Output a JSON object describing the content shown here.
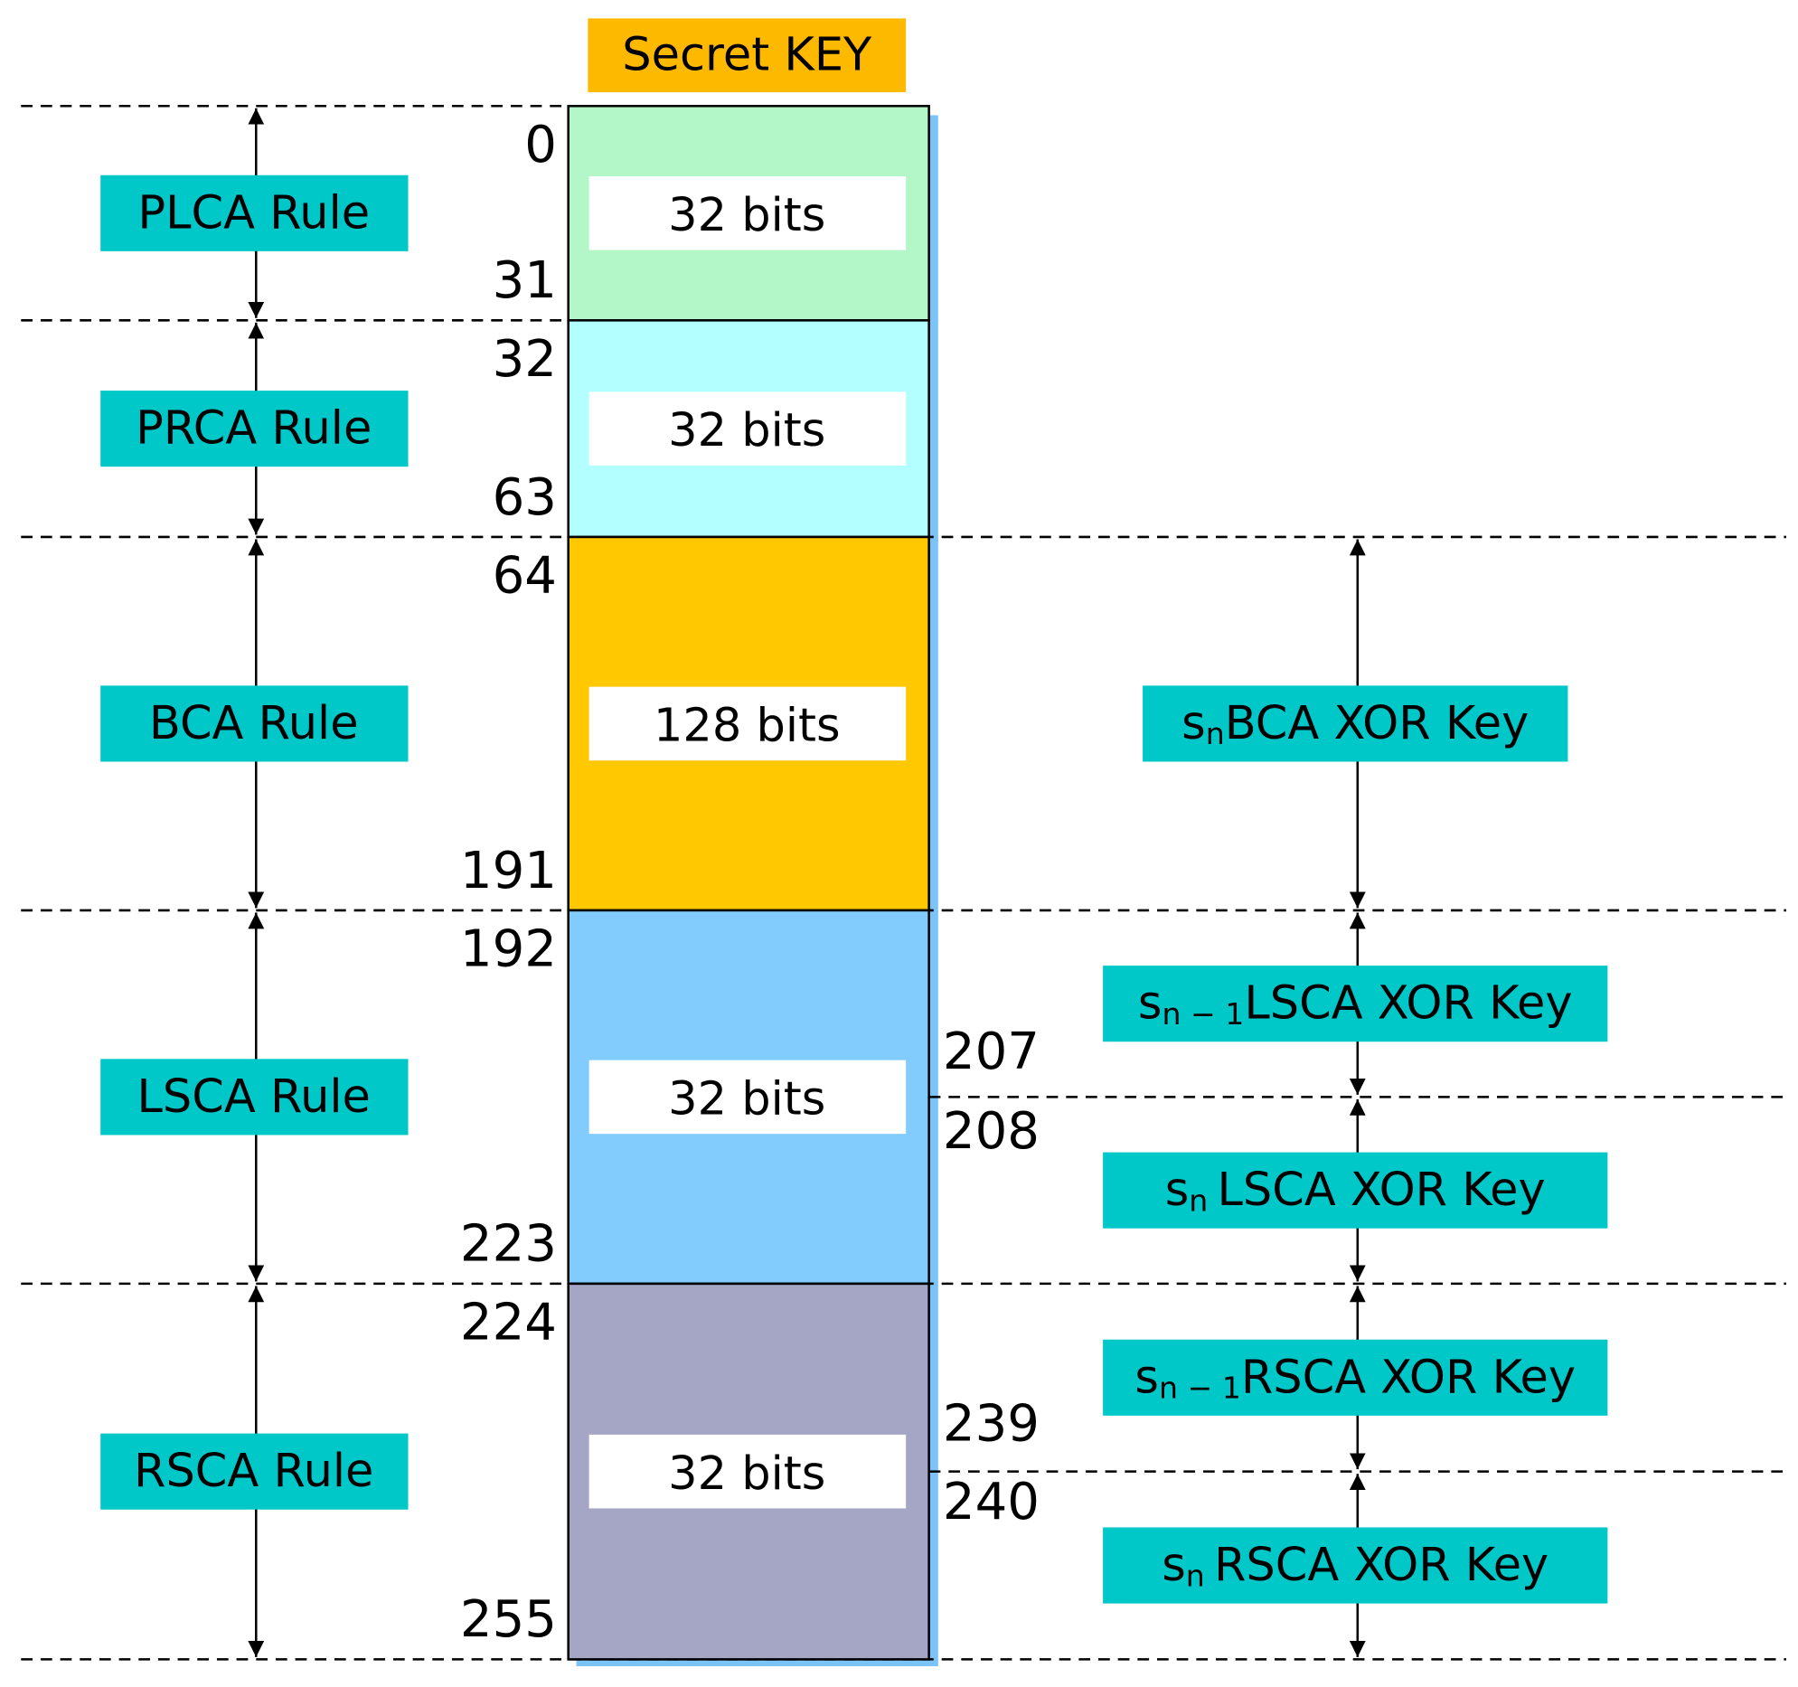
{
  "title": "Secret KEY",
  "segments": [
    {
      "start": 0,
      "end": 31,
      "bits": "32 bits"
    },
    {
      "start": 32,
      "end": 63,
      "bits": "32 bits"
    },
    {
      "start": 64,
      "end": 191,
      "bits": "128 bits"
    },
    {
      "start": 192,
      "end": 223,
      "bits": "32 bits"
    },
    {
      "start": 224,
      "end": 255,
      "bits": "32 bits"
    }
  ],
  "rules": [
    "PLCA Rule",
    "PRCA Rule",
    "BCA Rule",
    "LSCA Rule",
    "RSCA Rule"
  ],
  "xor_keys": [
    {
      "s": "s",
      "sub": "n",
      "label": "BCA XOR Key"
    },
    {
      "s": "s",
      "sub": "n − 1",
      "label": "LSCA XOR Key"
    },
    {
      "s": "s",
      "sub": "n",
      "label": "LSCA XOR Key"
    },
    {
      "s": "s",
      "sub": "n − 1",
      "label": "RSCA XOR Key"
    },
    {
      "s": "s",
      "sub": "n",
      "label": "RSCA XOR Key"
    }
  ],
  "split_labels": [
    207,
    208,
    239,
    240
  ]
}
